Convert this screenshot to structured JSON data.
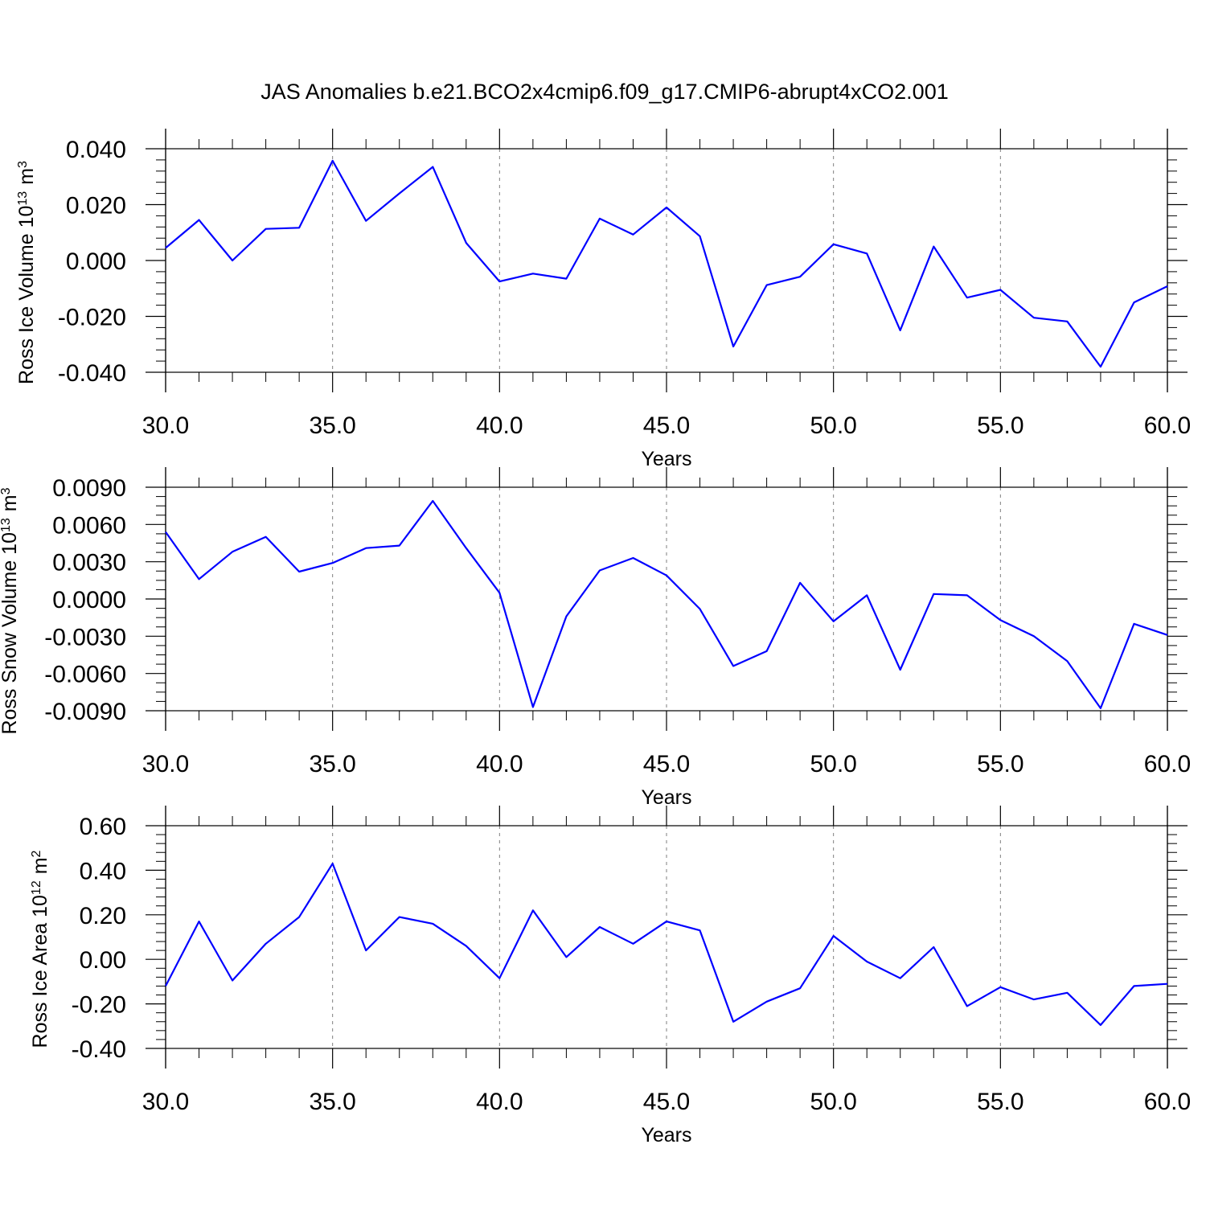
{
  "figure": {
    "title": "JAS Anomalies b.e21.BCO2x4cmip6.f09_g17.CMIP6-abrupt4xCO2.001"
  },
  "colors": {
    "series": "#0000ff",
    "axis": "#000000",
    "grid": "#7f7f7f"
  },
  "chart_data": [
    {
      "type": "line",
      "ylabel_main": "Ross Ice Volume 10",
      "ylabel_exp": "13",
      "ylabel_unit": "m",
      "ylabel_unit_exp": "3",
      "xlabel": "Years",
      "xlim": [
        30,
        60
      ],
      "ylim": [
        -0.04,
        0.04
      ],
      "xticks": [
        30,
        35,
        40,
        45,
        50,
        55,
        60
      ],
      "xtick_labels": [
        "30.0",
        "35.0",
        "40.0",
        "45.0",
        "50.0",
        "55.0",
        "60.0"
      ],
      "yticks": [
        0.04,
        0.02,
        0.0,
        -0.02,
        -0.04
      ],
      "ytick_labels": [
        "0.040",
        "0.020",
        "0.000",
        "-0.020",
        "-0.040"
      ],
      "grid": "vertical-dashed-at-major-x",
      "x": [
        30,
        31,
        32,
        33,
        34,
        35,
        36,
        37,
        38,
        39,
        40,
        41,
        42,
        43,
        44,
        45,
        46,
        47,
        48,
        49,
        50,
        51,
        52,
        53,
        54,
        55,
        56,
        57,
        58,
        59,
        60
      ],
      "values": [
        0.0045,
        0.0145,
        0.0,
        0.0113,
        0.0117,
        0.0357,
        0.0142,
        0.024,
        0.0335,
        0.0063,
        -0.0075,
        -0.0047,
        -0.0065,
        0.015,
        0.0093,
        0.019,
        0.0087,
        -0.0308,
        -0.0088,
        -0.0058,
        0.0058,
        0.0025,
        -0.025,
        0.005,
        -0.0133,
        -0.0105,
        -0.0205,
        -0.0218,
        -0.038,
        -0.015,
        -0.0092
      ]
    },
    {
      "type": "line",
      "ylabel_main": "Ross Snow Volume 10",
      "ylabel_exp": "13",
      "ylabel_unit": "m",
      "ylabel_unit_exp": "3",
      "xlabel": "Years",
      "xlim": [
        30,
        60
      ],
      "ylim": [
        -0.009,
        0.009
      ],
      "xticks": [
        30,
        35,
        40,
        45,
        50,
        55,
        60
      ],
      "xtick_labels": [
        "30.0",
        "35.0",
        "40.0",
        "45.0",
        "50.0",
        "55.0",
        "60.0"
      ],
      "yticks": [
        0.009,
        0.006,
        0.003,
        0.0,
        -0.003,
        -0.006,
        -0.009
      ],
      "ytick_labels": [
        "0.0090",
        "0.0060",
        "0.0030",
        "0.0000",
        "-0.0030",
        "-0.0060",
        "-0.0090"
      ],
      "grid": "vertical-dashed-at-major-x",
      "x": [
        30,
        31,
        32,
        33,
        34,
        35,
        36,
        37,
        38,
        39,
        40,
        41,
        42,
        43,
        44,
        45,
        46,
        47,
        48,
        49,
        50,
        51,
        52,
        53,
        54,
        55,
        56,
        57,
        58,
        59,
        60
      ],
      "values": [
        0.0054,
        0.0016,
        0.0038,
        0.005,
        0.0022,
        0.0029,
        0.0041,
        0.0043,
        0.0079,
        0.0041,
        0.0005,
        -0.0087,
        -0.0014,
        0.0023,
        0.0033,
        0.0019,
        -0.0008,
        -0.0054,
        -0.0042,
        0.0013,
        -0.0018,
        0.0003,
        -0.0057,
        0.0004,
        0.0003,
        -0.0017,
        -0.003,
        -0.005,
        -0.0088,
        -0.002,
        -0.0029
      ]
    },
    {
      "type": "line",
      "ylabel_main": "Ross Ice Area 10",
      "ylabel_exp": "12",
      "ylabel_unit": "m",
      "ylabel_unit_exp": "2",
      "xlabel": "Years",
      "xlim": [
        30,
        60
      ],
      "ylim": [
        -0.4,
        0.6
      ],
      "xticks": [
        30,
        35,
        40,
        45,
        50,
        55,
        60
      ],
      "xtick_labels": [
        "30.0",
        "35.0",
        "40.0",
        "45.0",
        "50.0",
        "55.0",
        "60.0"
      ],
      "yticks": [
        0.6,
        0.4,
        0.2,
        0.0,
        -0.2,
        -0.4
      ],
      "ytick_labels": [
        "0.60",
        "0.40",
        "0.20",
        "0.00",
        "-0.20",
        "-0.40"
      ],
      "grid": "vertical-dashed-at-major-x",
      "x": [
        30,
        31,
        32,
        33,
        34,
        35,
        36,
        37,
        38,
        39,
        40,
        41,
        42,
        43,
        44,
        45,
        46,
        47,
        48,
        49,
        50,
        51,
        52,
        53,
        54,
        55,
        56,
        57,
        58,
        59,
        60
      ],
      "values": [
        -0.12,
        0.17,
        -0.095,
        0.07,
        0.19,
        0.43,
        0.04,
        0.19,
        0.16,
        0.06,
        -0.085,
        0.22,
        0.01,
        0.145,
        0.07,
        0.17,
        0.13,
        -0.28,
        -0.19,
        -0.13,
        0.105,
        -0.01,
        -0.085,
        0.055,
        -0.21,
        -0.125,
        -0.18,
        -0.15,
        -0.295,
        -0.12,
        -0.11
      ]
    }
  ]
}
